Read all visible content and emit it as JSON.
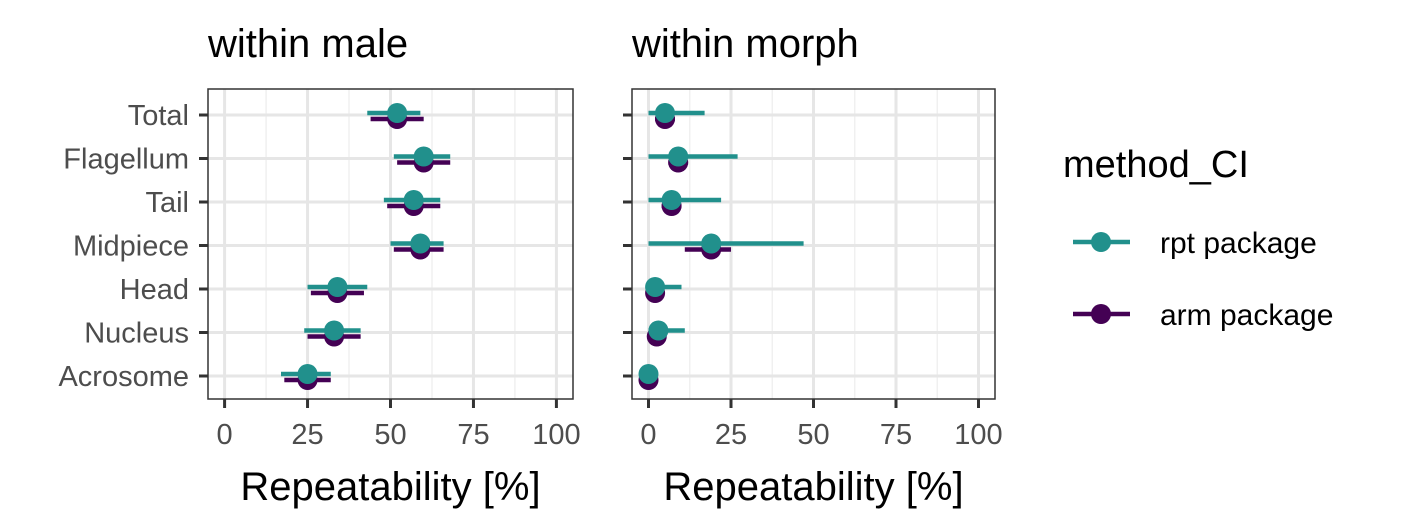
{
  "chart_data": {
    "type": "scatter",
    "subtype": "dot-and-interval",
    "categories": [
      "Total",
      "Flagellum",
      "Tail",
      "Midpiece",
      "Head",
      "Nucleus",
      "Acrosome"
    ],
    "xlabel": "Repeatability [%]",
    "xlim": [
      -5,
      105
    ],
    "xticks": [
      0,
      25,
      50,
      75,
      100
    ],
    "grid": true,
    "legend": {
      "title": "method_CI",
      "position": "right",
      "entries": [
        {
          "name": "rpt package",
          "color": "#21908C"
        },
        {
          "name": "arm package",
          "color": "#440154"
        }
      ]
    },
    "panels": [
      {
        "title": "within male",
        "series": [
          {
            "name": "arm package",
            "color": "#440154",
            "points": [
              {
                "category": "Total",
                "estimate": 52,
                "lower": 44,
                "upper": 60
              },
              {
                "category": "Flagellum",
                "estimate": 60,
                "lower": 52,
                "upper": 68
              },
              {
                "category": "Tail",
                "estimate": 57,
                "lower": 49,
                "upper": 65
              },
              {
                "category": "Midpiece",
                "estimate": 59,
                "lower": 51,
                "upper": 66
              },
              {
                "category": "Head",
                "estimate": 34,
                "lower": 26,
                "upper": 42
              },
              {
                "category": "Nucleus",
                "estimate": 33,
                "lower": 25,
                "upper": 41
              },
              {
                "category": "Acrosome",
                "estimate": 25,
                "lower": 18,
                "upper": 32
              }
            ]
          },
          {
            "name": "rpt package",
            "color": "#21908C",
            "points": [
              {
                "category": "Total",
                "estimate": 52,
                "lower": 43,
                "upper": 59
              },
              {
                "category": "Flagellum",
                "estimate": 60,
                "lower": 51,
                "upper": 68
              },
              {
                "category": "Tail",
                "estimate": 57,
                "lower": 48,
                "upper": 65
              },
              {
                "category": "Midpiece",
                "estimate": 59,
                "lower": 50,
                "upper": 66
              },
              {
                "category": "Head",
                "estimate": 34,
                "lower": 25,
                "upper": 43
              },
              {
                "category": "Nucleus",
                "estimate": 33,
                "lower": 24,
                "upper": 41
              },
              {
                "category": "Acrosome",
                "estimate": 25,
                "lower": 17,
                "upper": 32
              }
            ]
          }
        ]
      },
      {
        "title": "within morph",
        "series": [
          {
            "name": "arm package",
            "color": "#440154",
            "points": [
              {
                "category": "Total",
                "estimate": 5,
                "lower": 2,
                "upper": 8
              },
              {
                "category": "Flagellum",
                "estimate": 9,
                "lower": 6,
                "upper": 12
              },
              {
                "category": "Tail",
                "estimate": 7,
                "lower": 4,
                "upper": 10
              },
              {
                "category": "Midpiece",
                "estimate": 19,
                "lower": 11,
                "upper": 25
              },
              {
                "category": "Head",
                "estimate": 2,
                "lower": 1,
                "upper": 4
              },
              {
                "category": "Nucleus",
                "estimate": 2.5,
                "lower": 1,
                "upper": 4
              },
              {
                "category": "Acrosome",
                "estimate": 0,
                "lower": 0,
                "upper": 1
              }
            ]
          },
          {
            "name": "rpt package",
            "color": "#21908C",
            "points": [
              {
                "category": "Total",
                "estimate": 5,
                "lower": 0,
                "upper": 17
              },
              {
                "category": "Flagellum",
                "estimate": 9,
                "lower": 0,
                "upper": 27
              },
              {
                "category": "Tail",
                "estimate": 7,
                "lower": 0,
                "upper": 22
              },
              {
                "category": "Midpiece",
                "estimate": 19,
                "lower": 0,
                "upper": 47
              },
              {
                "category": "Head",
                "estimate": 2,
                "lower": 0,
                "upper": 10
              },
              {
                "category": "Nucleus",
                "estimate": 3,
                "lower": 0,
                "upper": 11
              },
              {
                "category": "Acrosome",
                "estimate": 0,
                "lower": 0,
                "upper": 1
              }
            ]
          }
        ]
      }
    ]
  }
}
